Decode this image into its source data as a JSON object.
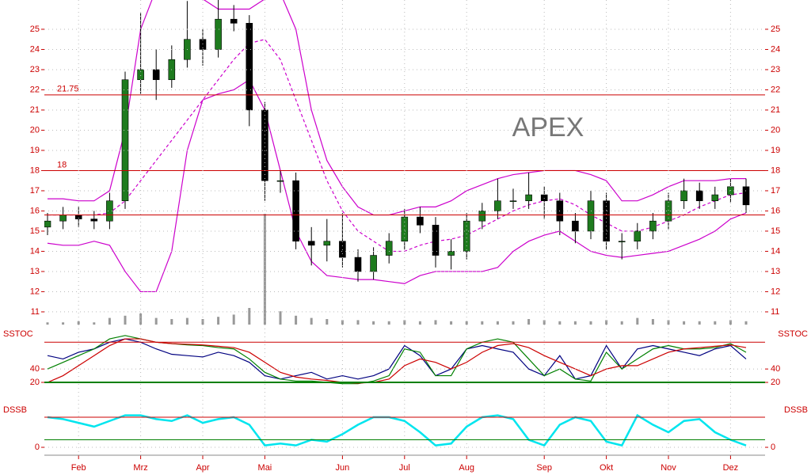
{
  "chart_data": [
    {
      "type": "candlestick",
      "title": "APEX",
      "categories": [
        null,
        null,
        "Feb",
        null,
        null,
        null,
        "Mrz",
        null,
        null,
        null,
        "Apr",
        null,
        null,
        null,
        "Mai",
        null,
        null,
        null,
        null,
        "Jun",
        null,
        null,
        null,
        "Jul",
        null,
        null,
        null,
        "Aug",
        null,
        null,
        null,
        null,
        "Sep",
        null,
        null,
        null,
        "Okt",
        null,
        null,
        null,
        "Nov",
        null,
        null,
        null,
        "Dez",
        null
      ],
      "open": [
        15.2,
        15.5,
        15.8,
        15.6,
        15.5,
        16.5,
        22.5,
        23,
        22.5,
        23.5,
        24.5,
        24,
        25.5,
        25.3,
        21,
        17.5,
        17.5,
        14.5,
        14.3,
        14.5,
        13.7,
        13,
        13.8,
        14.5,
        15.7,
        15.3,
        13.8,
        14,
        15.5,
        16,
        16.5,
        16.5,
        16.8,
        16.5,
        15.5,
        15,
        16.5,
        14.5,
        14.5,
        15,
        15.5,
        16.5,
        17,
        16.5,
        16.8,
        17.2
      ],
      "high": [
        15.9,
        16.2,
        16.2,
        16.0,
        16.9,
        22.9,
        25.8,
        24,
        24.2,
        26.4,
        25,
        26.5,
        26.2,
        25.7,
        21.4,
        18,
        17.9,
        15.2,
        15.6,
        15.9,
        14.1,
        14.2,
        14.9,
        16.1,
        16.2,
        15.7,
        14.6,
        15.9,
        16.4,
        17.6,
        17.1,
        17.9,
        17.2,
        16.9,
        15.9,
        17,
        16.9,
        14.9,
        15.4,
        15.9,
        16.9,
        17.6,
        17.4,
        17.2,
        17.6,
        17.6
      ],
      "low": [
        14.8,
        15.1,
        15.2,
        15.1,
        15.1,
        16.1,
        21.8,
        21.5,
        22.1,
        23.1,
        23.2,
        23.6,
        24.9,
        20.2,
        16.5,
        16.9,
        14.1,
        13.3,
        13.5,
        13.2,
        12.5,
        12.6,
        13.4,
        14.1,
        14.9,
        13.2,
        13.1,
        13.6,
        15.1,
        15.6,
        16.1,
        16.1,
        15.6,
        14.8,
        14.4,
        14.6,
        14.1,
        13.6,
        14.1,
        14.6,
        15.1,
        16.1,
        16.1,
        16.1,
        16.4,
        15.9
      ],
      "close": [
        15.5,
        15.8,
        15.6,
        15.5,
        16.5,
        22.5,
        23,
        22.5,
        23.5,
        24.5,
        24,
        25.5,
        25.3,
        21,
        17.5,
        17.5,
        14.5,
        14.3,
        14.5,
        13.7,
        13,
        13.8,
        14.5,
        15.7,
        15.3,
        13.8,
        14,
        15.5,
        16,
        16.5,
        16.5,
        16.8,
        16.5,
        15.5,
        15,
        16.5,
        14.5,
        14.5,
        15,
        15.5,
        16.5,
        17,
        16.5,
        16.8,
        17.2,
        16.3
      ],
      "up_color": "#1e7b1e",
      "down_color": "#000000",
      "bands": {
        "color": "#cc00cc",
        "upper": [
          16.6,
          16.6,
          16.5,
          16.5,
          17,
          20,
          25,
          27,
          27,
          27,
          26.5,
          26,
          26,
          26,
          26.5,
          26.8,
          25,
          21,
          18.5,
          17.2,
          16.2,
          15.8,
          15.8,
          16,
          16.2,
          16.2,
          16.5,
          17,
          17.3,
          17.6,
          17.8,
          17.9,
          18,
          18,
          18,
          17.8,
          17.5,
          16.5,
          16.5,
          16.8,
          17.2,
          17.5,
          17.5,
          17.5,
          17.6,
          17.6
        ],
        "middle": [
          15.8,
          15.8,
          15.8,
          15.8,
          15.9,
          16.5,
          17.5,
          18.5,
          19.5,
          20.5,
          21.5,
          22.5,
          23.5,
          24.3,
          24.5,
          23.5,
          21.5,
          19.5,
          17.5,
          16,
          15,
          14.5,
          14,
          14,
          14.3,
          14.5,
          14.6,
          14.8,
          15.2,
          15.6,
          16,
          16.3,
          16.5,
          16.6,
          16.3,
          15.8,
          15.4,
          15,
          15,
          15.2,
          15.5,
          15.8,
          16.2,
          16.5,
          16.8,
          16.9
        ],
        "lower": [
          14.4,
          14.3,
          14.3,
          14.5,
          14.3,
          13,
          12,
          12,
          14,
          19,
          21.5,
          21.8,
          22,
          22.5,
          21,
          18,
          15,
          13.5,
          12.8,
          12.7,
          12.6,
          12.6,
          12.5,
          12.4,
          12.8,
          13,
          13,
          13,
          13,
          13.2,
          14,
          14.5,
          14.8,
          15,
          14.5,
          14,
          13.8,
          13.7,
          13.8,
          13.9,
          14,
          14.3,
          14.6,
          15,
          15.6,
          15.9
        ]
      },
      "volume": {
        "color": "#999999",
        "values": [
          2,
          2,
          3,
          2,
          6,
          8,
          10,
          6,
          5,
          6,
          5,
          7,
          9,
          15,
          100,
          12,
          8,
          6,
          5,
          4,
          4,
          3,
          3,
          4,
          3,
          4,
          3,
          3,
          3,
          3,
          3,
          5,
          4,
          3,
          3,
          3,
          4,
          3,
          6,
          5,
          4,
          3,
          3,
          3,
          4,
          3
        ]
      },
      "labeled_lines": [
        21.75,
        18
      ],
      "lines": [
        15.8
      ],
      "line_color": "#cc0000",
      "ylim": [
        10.37,
        26.45
      ],
      "yticks": [
        11,
        12,
        13,
        14,
        15,
        16,
        17,
        18,
        19,
        20,
        21,
        22,
        23,
        24,
        25
      ],
      "grid": true
    },
    {
      "type": "line",
      "title": "SSTOC",
      "series": [
        {
          "color": "#000080",
          "values": [
            60,
            55,
            65,
            70,
            80,
            85,
            80,
            70,
            62,
            60,
            58,
            65,
            60,
            50,
            30,
            25,
            30,
            35,
            25,
            30,
            25,
            30,
            40,
            75,
            60,
            30,
            40,
            70,
            75,
            70,
            65,
            40,
            30,
            60,
            25,
            30,
            75,
            40,
            70,
            75,
            70,
            65,
            60,
            70,
            75,
            55
          ]
        },
        {
          "color": "#008000",
          "values": [
            40,
            50,
            60,
            70,
            85,
            90,
            85,
            80,
            78,
            76,
            75,
            72,
            70,
            55,
            35,
            25,
            22,
            22,
            20,
            18,
            18,
            22,
            30,
            70,
            65,
            30,
            30,
            70,
            80,
            85,
            80,
            55,
            30,
            40,
            25,
            22,
            65,
            40,
            55,
            70,
            75,
            70,
            70,
            72,
            78,
            65
          ]
        },
        {
          "color": "#cc0000",
          "values": [
            20,
            30,
            45,
            60,
            75,
            85,
            85,
            80,
            78,
            77,
            76,
            74,
            72,
            65,
            50,
            35,
            28,
            25,
            23,
            20,
            19,
            20,
            25,
            45,
            55,
            50,
            40,
            50,
            65,
            75,
            78,
            72,
            60,
            50,
            40,
            30,
            40,
            45,
            45,
            55,
            65,
            70,
            72,
            74,
            76,
            72
          ]
        }
      ],
      "lines": [
        80,
        20
      ],
      "line_colors": [
        "#cc0000",
        "#008000"
      ],
      "ylim": [
        -6,
        104
      ],
      "yticks": [
        20,
        40
      ],
      "grid": true
    },
    {
      "type": "line",
      "title": "DSSB",
      "series": [
        {
          "color": "#00e5ee",
          "values": [
            80,
            75,
            65,
            55,
            70,
            85,
            85,
            75,
            70,
            85,
            65,
            75,
            80,
            60,
            5,
            10,
            5,
            20,
            15,
            35,
            60,
            80,
            80,
            70,
            40,
            5,
            10,
            55,
            80,
            85,
            75,
            20,
            5,
            60,
            80,
            70,
            15,
            5,
            85,
            60,
            40,
            70,
            75,
            40,
            20,
            5
          ]
        }
      ],
      "lines": [
        80,
        20
      ],
      "line_colors": [
        "#cc0000",
        "#008000"
      ],
      "ylim": [
        -21,
        120
      ],
      "yticks": [
        0
      ],
      "grid": true
    }
  ]
}
